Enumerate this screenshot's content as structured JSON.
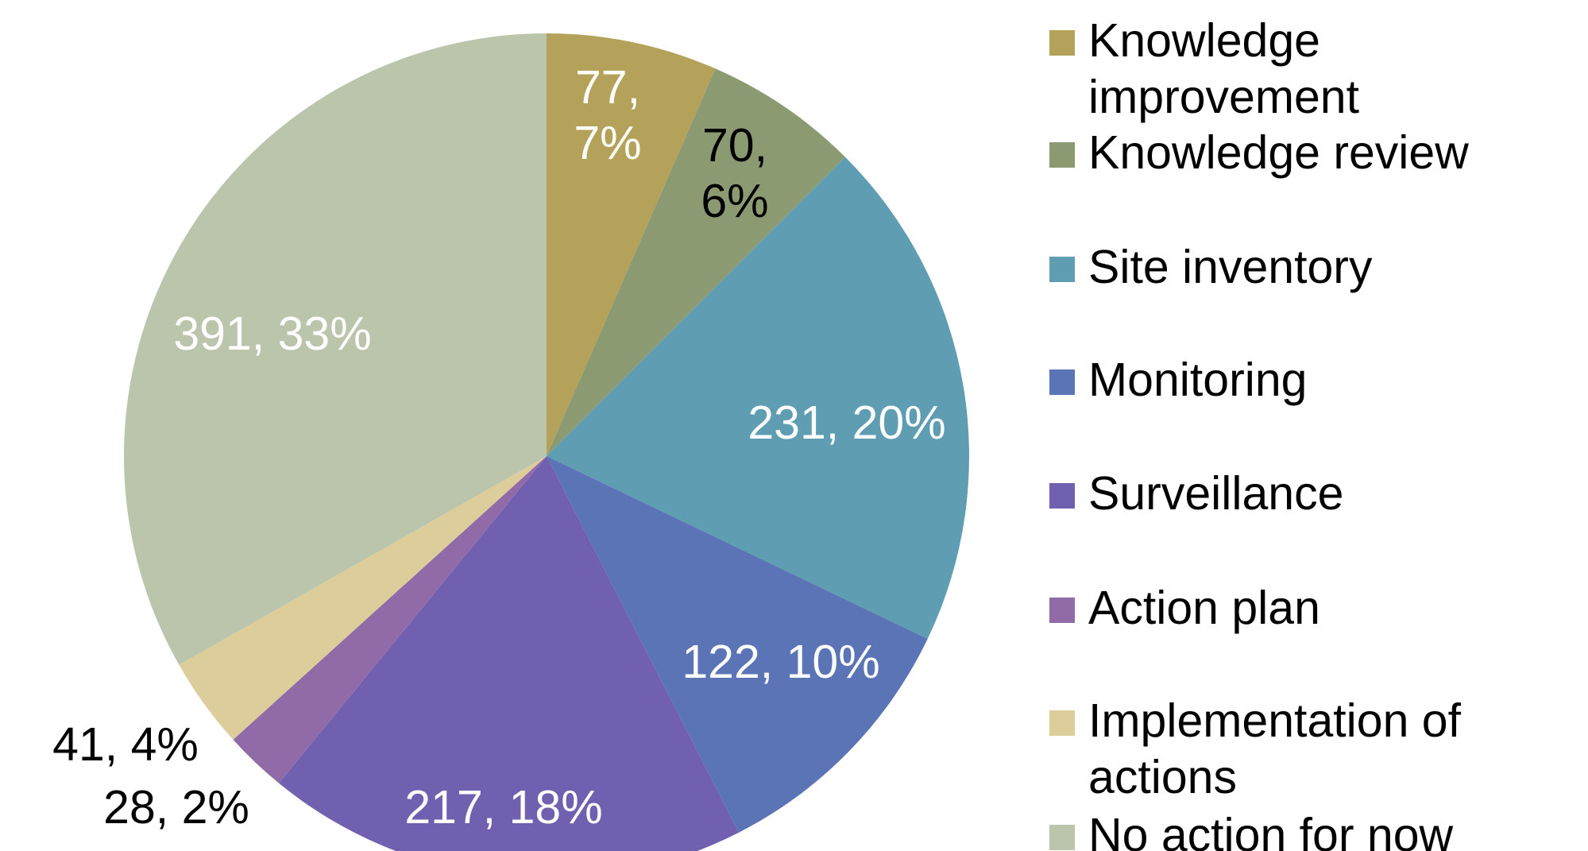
{
  "chart_data": {
    "type": "pie",
    "categories": [
      "Knowledge improvement",
      "Knowledge review",
      "Site inventory",
      "Monitoring",
      "Surveillance",
      "Action plan",
      "Implementation of actions",
      "No action for now"
    ],
    "values": [
      77,
      70,
      231,
      122,
      217,
      28,
      41,
      391
    ],
    "value_labels": [
      "77, 7%",
      "70, 6%",
      "231, 20%",
      "122, 10%",
      "217, 18%",
      "28, 2%",
      "41, 4%",
      "391, 33%"
    ],
    "colors": [
      "#b5a25a",
      "#8c9a72",
      "#5f9db3",
      "#5a74b5",
      "#7160b0",
      "#916aa8",
      "#dccd9b",
      "#bac5ab"
    ],
    "legend": "right"
  }
}
